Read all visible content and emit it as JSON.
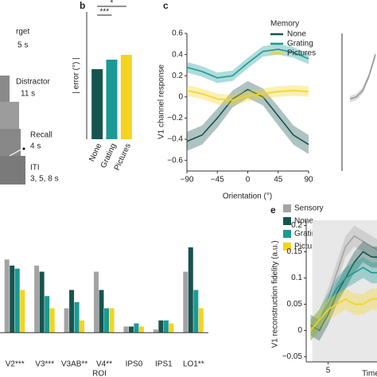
{
  "schematic": {
    "labels": [
      "rget",
      "5 s",
      "Distractor",
      "11 s",
      "Recall",
      "4 s",
      "ITI",
      "3, 5, 8 s"
    ]
  },
  "chart_data": [
    {
      "type": "bar",
      "panel": "b",
      "y_label": "| error (°) |",
      "categories": [
        "None",
        "Grating",
        "Pictures"
      ],
      "values": [
        4.4,
        5.0,
        5.3
      ],
      "colors": [
        "#17544f",
        "#1a9a94",
        "#f5d321"
      ],
      "ylim": [
        0,
        8
      ],
      "annotations": [
        "***",
        "*"
      ]
    },
    {
      "type": "line",
      "panel": "c",
      "y_label": "V1 channel response",
      "x_label": "Orientation (°)",
      "legend_title": "Memory",
      "x": [
        -90,
        -67.5,
        -45,
        -22.5,
        0,
        22.5,
        45,
        67.5,
        90
      ],
      "series": [
        {
          "name": "None",
          "color": "#17544f",
          "values": [
            -0.42,
            -0.36,
            -0.2,
            -0.02,
            0.07,
            0.0,
            -0.18,
            -0.36,
            -0.45
          ],
          "errors": [
            0.09,
            0.09,
            0.09,
            0.08,
            0.08,
            0.08,
            0.09,
            0.09,
            0.09
          ]
        },
        {
          "name": "Grating",
          "color": "#1a9a94",
          "values": [
            0.28,
            0.24,
            0.18,
            0.2,
            0.32,
            0.43,
            0.45,
            0.42,
            0.36
          ],
          "errors": [
            0.05,
            0.05,
            0.05,
            0.05,
            0.05,
            0.05,
            0.05,
            0.05,
            0.05
          ]
        },
        {
          "name": "Pictures",
          "color": "#f5d321",
          "values": [
            0.06,
            0.03,
            -0.02,
            -0.03,
            0.01,
            0.03,
            0.05,
            0.06,
            0.05
          ],
          "errors": [
            0.05,
            0.05,
            0.05,
            0.05,
            0.05,
            0.05,
            0.05,
            0.05,
            0.05
          ]
        }
      ],
      "xlim": [
        -90,
        90
      ],
      "ylim": [
        -0.7,
        0.6
      ],
      "xticks": [
        {
          "value": -90,
          "label": "−90"
        },
        {
          "value": -45,
          "label": "−45"
        },
        0,
        45,
        90
      ],
      "yticks": [
        {
          "value": -0.6,
          "label": "−0.6"
        },
        {
          "value": -0.4,
          "label": "−0.4"
        },
        {
          "value": -0.2,
          "label": "−0.2"
        },
        0,
        0.2,
        0.4,
        0.6
      ]
    },
    {
      "type": "line",
      "x": [
        0,
        1,
        2,
        3,
        4
      ],
      "series": [
        {
          "color": "#9a9a9a",
          "values": [
            -0.02,
            0.0,
            0.06,
            0.2,
            0.4
          ],
          "errors": [
            0.03,
            0.03,
            0.03,
            0.03,
            0.03
          ]
        }
      ],
      "xlim": [
        -2.5,
        4.25
      ],
      "ylim": [
        -0.7,
        0.6
      ]
    },
    {
      "type": "grouped_bar",
      "x_label": "ROI",
      "categories": [
        "V2***",
        "V3***",
        "V3AB**",
        "V4**",
        "IPS0",
        "IPS1",
        "LO1**"
      ],
      "series": [
        {
          "name": "Sensory",
          "color": "#a3a3a3",
          "values": [
            0.12,
            0.11,
            0.04,
            0.1,
            0.01,
            0.005,
            0.1
          ]
        },
        {
          "name": "None",
          "color": "#17544f",
          "values": [
            0.11,
            0.1,
            0.07,
            0.07,
            0.01,
            0.02,
            0.14
          ]
        },
        {
          "name": "Grating",
          "color": "#1a9a94",
          "values": [
            0.105,
            0.06,
            0.05,
            0.04,
            0.015,
            0.02,
            0.07
          ]
        },
        {
          "name": "Pictures",
          "color": "#f5d321",
          "values": [
            0.07,
            0.04,
            0.02,
            0.04,
            0.01,
            0.015,
            0.04
          ]
        }
      ],
      "ylim": [
        -0.035,
        0.2
      ]
    },
    {
      "type": "line",
      "panel": "e",
      "y_label": "V1 reconstruction fidelity (a.u.)",
      "x_label": "Time",
      "x": [
        3,
        4,
        5,
        6,
        7,
        8,
        9,
        10,
        11
      ],
      "shading": [
        3.2,
        11
      ],
      "series": [
        {
          "color": "#a3a3a3",
          "values": [
            0.0,
            0.02,
            0.06,
            0.11,
            0.16,
            0.18,
            0.17,
            0.16,
            0.15
          ],
          "errors": [
            0.02,
            0.02,
            0.02,
            0.02,
            0.02,
            0.02,
            0.02,
            0.02,
            0.02
          ]
        },
        {
          "color": "#17544f",
          "values": [
            0.01,
            0.0,
            0.03,
            0.07,
            0.1,
            0.13,
            0.15,
            0.14,
            0.14
          ],
          "errors": [
            0.02,
            0.02,
            0.02,
            0.02,
            0.02,
            0.02,
            0.02,
            0.02,
            0.02
          ]
        },
        {
          "color": "#1a9a94",
          "values": [
            0.0,
            0.02,
            0.05,
            0.08,
            0.1,
            0.11,
            0.12,
            0.11,
            0.11
          ],
          "errors": [
            0.02,
            0.02,
            0.02,
            0.02,
            0.02,
            0.02,
            0.02,
            0.02,
            0.02
          ]
        },
        {
          "color": "#f5d321",
          "values": [
            0.0,
            0.02,
            0.04,
            0.05,
            0.06,
            0.05,
            0.05,
            0.06,
            0.06
          ],
          "errors": [
            0.02,
            0.02,
            0.02,
            0.02,
            0.02,
            0.02,
            0.02,
            0.02,
            0.02
          ]
        }
      ],
      "xlim": [
        2.5,
        10.6
      ],
      "ylim": [
        -0.06,
        0.21
      ],
      "xticks": [
        5
      ],
      "yticks": [
        {
          "value": -0.05,
          "label": "−0.05"
        },
        0,
        0.05,
        0.1,
        0.15,
        0.2
      ]
    }
  ]
}
